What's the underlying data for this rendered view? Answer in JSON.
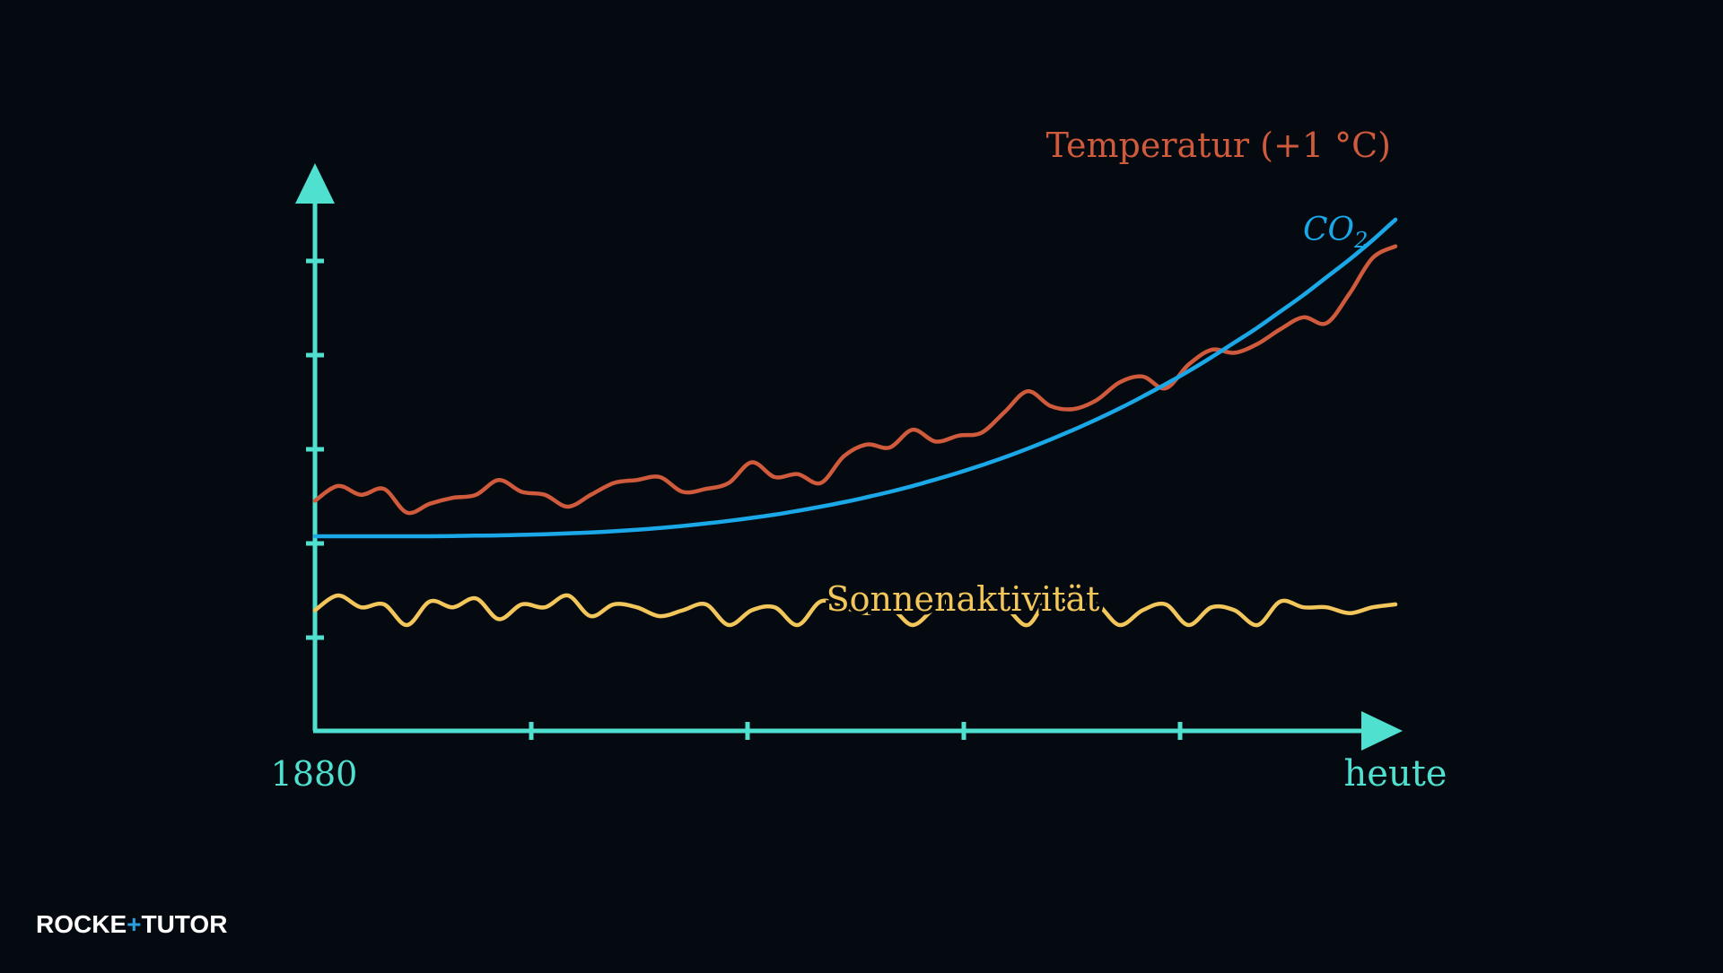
{
  "chart_data": {
    "type": "line",
    "x_start_label": "1880",
    "x_end_label": "heute",
    "colors": {
      "axis": "#4fe0d0",
      "temperature": "#cf5a3c",
      "co2": "#1aa8e8",
      "solar": "#f2c65a",
      "background": "#050a10",
      "logo_text": "#ffffff",
      "logo_accent": "#2a9fe0"
    },
    "series": [
      {
        "name": "Temperatur (+1 °C)",
        "key": "temperature",
        "description_level": "relative",
        "values": [
          0.42,
          0.47,
          0.44,
          0.46,
          0.38,
          0.41,
          0.43,
          0.44,
          0.49,
          0.45,
          0.44,
          0.4,
          0.44,
          0.48,
          0.49,
          0.5,
          0.45,
          0.46,
          0.48,
          0.55,
          0.5,
          0.51,
          0.48,
          0.57,
          0.61,
          0.6,
          0.66,
          0.62,
          0.64,
          0.65,
          0.72,
          0.79,
          0.74,
          0.73,
          0.76,
          0.82,
          0.84,
          0.8,
          0.88,
          0.93,
          0.92,
          0.95,
          1.0,
          1.04,
          1.02,
          1.12,
          1.24,
          1.28
        ]
      },
      {
        "name_base": "CO",
        "name_sub": "2",
        "key": "co2",
        "description_level": "relative",
        "values": [
          0.3,
          0.3,
          0.3,
          0.3,
          0.3,
          0.3,
          0.301,
          0.302,
          0.303,
          0.305,
          0.307,
          0.31,
          0.313,
          0.317,
          0.322,
          0.328,
          0.335,
          0.343,
          0.352,
          0.362,
          0.373,
          0.386,
          0.4,
          0.415,
          0.432,
          0.45,
          0.47,
          0.492,
          0.515,
          0.54,
          0.567,
          0.596,
          0.627,
          0.66,
          0.695,
          0.732,
          0.772,
          0.814,
          0.858,
          0.905,
          0.955,
          1.005,
          1.06,
          1.115,
          1.175,
          1.235,
          1.3,
          1.37
        ]
      },
      {
        "name": "Sonnenaktivität",
        "key": "solar",
        "description_level": "relative",
        "values": [
          0.05,
          0.1,
          0.06,
          0.07,
          0.0,
          0.08,
          0.06,
          0.09,
          0.02,
          0.07,
          0.06,
          0.1,
          0.03,
          0.07,
          0.06,
          0.03,
          0.05,
          0.07,
          0.0,
          0.05,
          0.06,
          0.0,
          0.08,
          0.06,
          0.04,
          0.06,
          0.0,
          0.06,
          0.09,
          0.05,
          0.06,
          0.0,
          0.1,
          0.06,
          0.07,
          0.0,
          0.05,
          0.07,
          0.0,
          0.06,
          0.05,
          0.0,
          0.08,
          0.06,
          0.06,
          0.04,
          0.06,
          0.07
        ]
      }
    ],
    "grid": false,
    "axis_ticks": {
      "x_inner_count": 4,
      "y_count": 5
    }
  },
  "logo": {
    "text_part1": "ROCKE",
    "text_part2": "TUTO",
    "plus_glyph": "+",
    "r_glyph": "R"
  }
}
